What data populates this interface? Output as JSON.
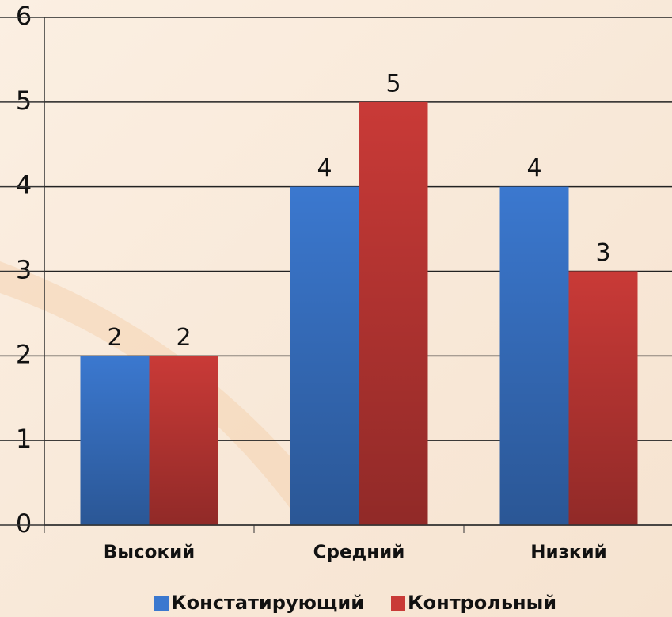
{
  "chart_data": {
    "type": "bar",
    "categories": [
      "Высокий",
      "Средний",
      "Низкий"
    ],
    "series": [
      {
        "name": "Констатирующий",
        "color": "#3b78cf",
        "values": [
          2,
          4,
          4
        ]
      },
      {
        "name": "Контрольный",
        "color": "#c93a37",
        "values": [
          2,
          5,
          3
        ]
      }
    ],
    "ylim": [
      0,
      6
    ],
    "yticks": [
      0,
      1,
      2,
      3,
      4,
      5,
      6
    ],
    "grid": true,
    "legend": "bottom",
    "data_labels": true
  }
}
